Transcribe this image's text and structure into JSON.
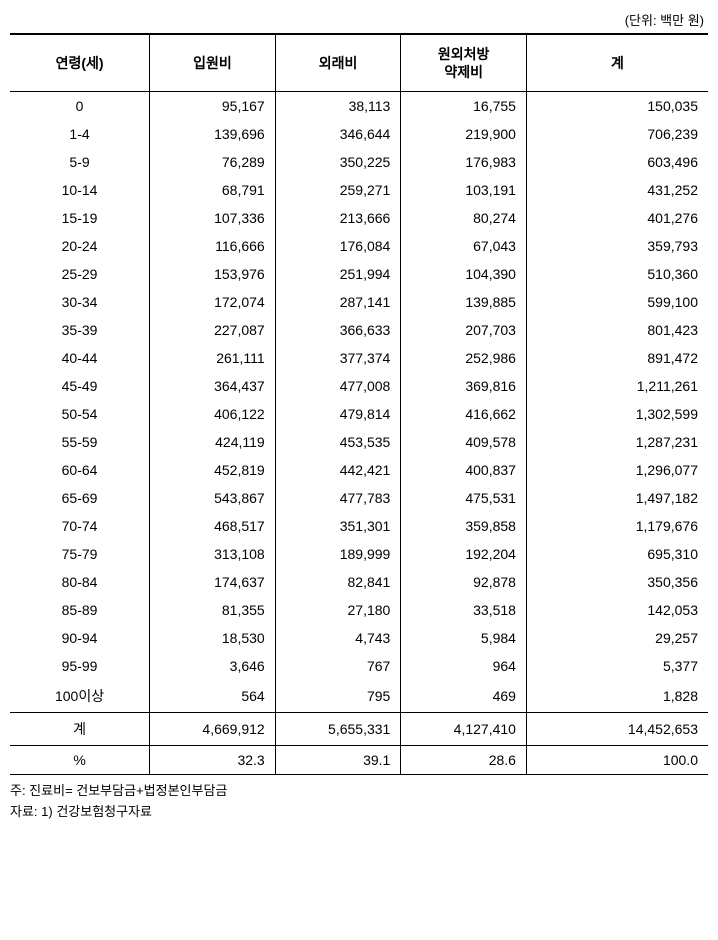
{
  "unit_label": "(단위: 백만 원)",
  "table": {
    "columns": [
      "연령(세)",
      "입원비",
      "외래비",
      "원외처방\n약제비",
      "계"
    ],
    "col_widths": [
      "20%",
      "18%",
      "18%",
      "18%",
      "26%"
    ],
    "rows": [
      [
        "0",
        "95,167",
        "38,113",
        "16,755",
        "150,035"
      ],
      [
        "1-4",
        "139,696",
        "346,644",
        "219,900",
        "706,239"
      ],
      [
        "5-9",
        "76,289",
        "350,225",
        "176,983",
        "603,496"
      ],
      [
        "10-14",
        "68,791",
        "259,271",
        "103,191",
        "431,252"
      ],
      [
        "15-19",
        "107,336",
        "213,666",
        "80,274",
        "401,276"
      ],
      [
        "20-24",
        "116,666",
        "176,084",
        "67,043",
        "359,793"
      ],
      [
        "25-29",
        "153,976",
        "251,994",
        "104,390",
        "510,360"
      ],
      [
        "30-34",
        "172,074",
        "287,141",
        "139,885",
        "599,100"
      ],
      [
        "35-39",
        "227,087",
        "366,633",
        "207,703",
        "801,423"
      ],
      [
        "40-44",
        "261,111",
        "377,374",
        "252,986",
        "891,472"
      ],
      [
        "45-49",
        "364,437",
        "477,008",
        "369,816",
        "1,211,261"
      ],
      [
        "50-54",
        "406,122",
        "479,814",
        "416,662",
        "1,302,599"
      ],
      [
        "55-59",
        "424,119",
        "453,535",
        "409,578",
        "1,287,231"
      ],
      [
        "60-64",
        "452,819",
        "442,421",
        "400,837",
        "1,296,077"
      ],
      [
        "65-69",
        "543,867",
        "477,783",
        "475,531",
        "1,497,182"
      ],
      [
        "70-74",
        "468,517",
        "351,301",
        "359,858",
        "1,179,676"
      ],
      [
        "75-79",
        "313,108",
        "189,999",
        "192,204",
        "695,310"
      ],
      [
        "80-84",
        "174,637",
        "82,841",
        "92,878",
        "350,356"
      ],
      [
        "85-89",
        "81,355",
        "27,180",
        "33,518",
        "142,053"
      ],
      [
        "90-94",
        "18,530",
        "4,743",
        "5,984",
        "29,257"
      ],
      [
        "95-99",
        "3,646",
        "767",
        "964",
        "5,377"
      ],
      [
        "100이상",
        "564",
        "795",
        "469",
        "1,828"
      ]
    ],
    "total_row": [
      "계",
      "4,669,912",
      "5,655,331",
      "4,127,410",
      "14,452,653"
    ],
    "percent_row": [
      "%",
      "32.3",
      "39.1",
      "28.6",
      "100.0"
    ]
  },
  "footnotes": [
    "주: 진료비= 건보부담금+법정본인부담금",
    "자료: 1) 건강보험청구자료"
  ]
}
